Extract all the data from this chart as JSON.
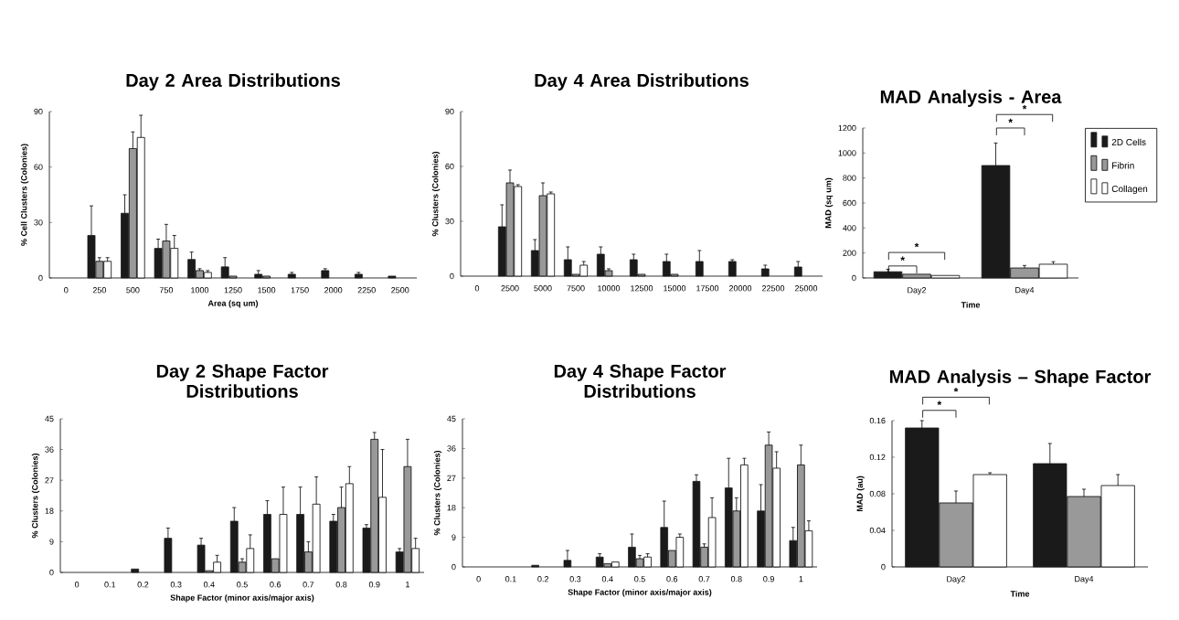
{
  "chart_data": [
    {
      "type": "bar",
      "title": "Day 2 Area Distributions",
      "xlabel": "Area (sq um)",
      "ylabel": "% Cell Clusters (Colonies)",
      "categories": [
        "0",
        "250",
        "500",
        "750",
        "1000",
        "1250",
        "1500",
        "1750",
        "2000",
        "2250",
        "2500"
      ],
      "series": [
        {
          "color": "#1a1a1a",
          "values": [
            null,
            23,
            35,
            16,
            10,
            6,
            2,
            2,
            4,
            2,
            1
          ],
          "errors": [
            null,
            16,
            10,
            5,
            4,
            5,
            2,
            1,
            1,
            1,
            null
          ]
        },
        {
          "color": "#999999",
          "values": [
            null,
            9,
            70,
            20,
            4,
            1,
            1,
            null,
            null,
            null,
            null
          ],
          "errors": [
            null,
            2,
            9,
            9,
            1,
            null,
            null,
            null,
            null,
            null,
            null
          ]
        },
        {
          "color": "#ffffff",
          "values": [
            null,
            9,
            76,
            16,
            3,
            null,
            null,
            null,
            null,
            null,
            null
          ],
          "errors": [
            null,
            2,
            12,
            7,
            1,
            null,
            null,
            null,
            null,
            null,
            null
          ]
        }
      ],
      "ylim": [
        0,
        90
      ],
      "yticks": [
        0,
        30,
        60,
        90
      ]
    },
    {
      "type": "bar",
      "title": "Day 4 Area Distributions",
      "ylabel": "% Clusters (Colonies)",
      "categories": [
        "0",
        "2500",
        "5000",
        "7500",
        "10000",
        "12500",
        "15000",
        "17500",
        "20000",
        "22500",
        "25000"
      ],
      "series": [
        {
          "color": "#1a1a1a",
          "values": [
            null,
            27,
            14,
            9,
            12,
            9,
            8,
            8,
            8,
            4,
            5
          ],
          "errors": [
            null,
            12,
            6,
            7,
            4,
            3,
            4,
            6,
            1,
            2,
            3
          ]
        },
        {
          "color": "#999999",
          "values": [
            null,
            51,
            44,
            1,
            3,
            1,
            1,
            null,
            null,
            null,
            null
          ],
          "errors": [
            null,
            7,
            7,
            null,
            1,
            null,
            null,
            null,
            null,
            null,
            null
          ]
        },
        {
          "color": "#ffffff",
          "values": [
            null,
            49,
            45,
            6,
            null,
            null,
            null,
            null,
            null,
            null,
            null
          ],
          "errors": [
            null,
            1,
            1,
            2,
            null,
            null,
            null,
            null,
            null,
            null,
            null
          ]
        }
      ],
      "ylim": [
        0,
        90
      ],
      "yticks": [
        0,
        30,
        60,
        90
      ]
    },
    {
      "type": "bar",
      "title": "MAD Analysis - Area",
      "xlabel": "Time",
      "ylabel": "MAD (sq um)",
      "categories": [
        "Day2",
        "Day4"
      ],
      "series": [
        {
          "name": "2D Cells",
          "color": "#1a1a1a",
          "values": [
            50,
            900
          ],
          "errors": [
            20,
            180
          ]
        },
        {
          "name": "Fibrin",
          "color": "#999999",
          "values": [
            30,
            80
          ],
          "errors": [
            null,
            20
          ]
        },
        {
          "name": "Collagen",
          "color": "#ffffff",
          "values": [
            20,
            110
          ],
          "errors": [
            null,
            20
          ]
        }
      ],
      "ylim": [
        0,
        1200
      ],
      "yticks": [
        0,
        200,
        400,
        600,
        800,
        1000,
        1200
      ],
      "legend": "right",
      "annotations": [
        "*",
        "*",
        "*",
        "*"
      ]
    },
    {
      "type": "bar",
      "title": "Day 2 Shape Factor Distributions",
      "xlabel": "Shape Factor (minor axis/major axis)",
      "ylabel": "% Clusters (Colonies)",
      "categories": [
        "0",
        "0.1",
        "0.2",
        "0.3",
        "0.4",
        "0.5",
        "0.6",
        "0.7",
        "0.8",
        "0.9",
        "1"
      ],
      "series": [
        {
          "color": "#1a1a1a",
          "values": [
            null,
            null,
            1,
            10,
            8,
            15,
            17,
            17,
            15,
            13,
            6
          ],
          "errors": [
            null,
            null,
            null,
            3,
            2,
            4,
            4,
            8,
            2,
            1,
            1
          ]
        },
        {
          "color": "#999999",
          "values": [
            null,
            null,
            null,
            null,
            0.5,
            3,
            4,
            6,
            19,
            39,
            31
          ],
          "errors": [
            null,
            null,
            null,
            null,
            null,
            1,
            null,
            3,
            6,
            2,
            8
          ]
        },
        {
          "color": "#ffffff",
          "values": [
            null,
            null,
            null,
            null,
            3,
            7,
            17,
            20,
            26,
            22,
            7
          ],
          "errors": [
            null,
            null,
            null,
            null,
            2,
            4,
            8,
            8,
            5,
            14,
            3
          ]
        }
      ],
      "ylim": [
        0,
        45
      ],
      "yticks": [
        0,
        9,
        18,
        27,
        36,
        45
      ]
    },
    {
      "type": "bar",
      "title": "Day 4 Shape Factor Distributions",
      "xlabel": "Shape Factor (minor axis/major axis)",
      "ylabel": "% Clusters (Colonies)",
      "categories": [
        "0",
        "0.1",
        "0.2",
        "0.3",
        "0.4",
        "0.5",
        "0.6",
        "0.7",
        "0.8",
        "0.9",
        "1"
      ],
      "series": [
        {
          "color": "#1a1a1a",
          "values": [
            null,
            null,
            0.5,
            2,
            3,
            6,
            12,
            26,
            24,
            17,
            8
          ],
          "errors": [
            null,
            null,
            null,
            3,
            1,
            4,
            8,
            2,
            9,
            8,
            4
          ]
        },
        {
          "color": "#999999",
          "values": [
            null,
            null,
            null,
            null,
            1,
            2.5,
            5,
            6,
            17,
            37,
            31
          ],
          "errors": [
            null,
            null,
            null,
            null,
            null,
            1,
            null,
            1,
            4,
            4,
            6
          ]
        },
        {
          "color": "#ffffff",
          "values": [
            null,
            null,
            null,
            null,
            1.5,
            3,
            9,
            15,
            31,
            30,
            11
          ],
          "errors": [
            null,
            null,
            null,
            null,
            null,
            1,
            1,
            6,
            2,
            5,
            3
          ]
        }
      ],
      "ylim": [
        0,
        45
      ],
      "yticks": [
        0,
        9,
        18,
        27,
        36,
        45
      ]
    },
    {
      "type": "bar",
      "title": "MAD Analysis – Shape Factor",
      "xlabel": "Time",
      "ylabel": "MAD (au)",
      "categories": [
        "Day2",
        "Day4"
      ],
      "series": [
        {
          "color": "#1a1a1a",
          "values": [
            0.152,
            0.113
          ],
          "errors": [
            0.008,
            0.022
          ]
        },
        {
          "color": "#999999",
          "values": [
            0.07,
            0.077
          ],
          "errors": [
            0.013,
            0.008
          ]
        },
        {
          "color": "#ffffff",
          "values": [
            0.101,
            0.089
          ],
          "errors": [
            0.002,
            0.012
          ]
        }
      ],
      "ylim": [
        0,
        0.16
      ],
      "yticks": [
        0,
        0.04,
        0.08,
        0.12,
        0.16
      ],
      "annotations": [
        "*",
        "*"
      ]
    }
  ]
}
